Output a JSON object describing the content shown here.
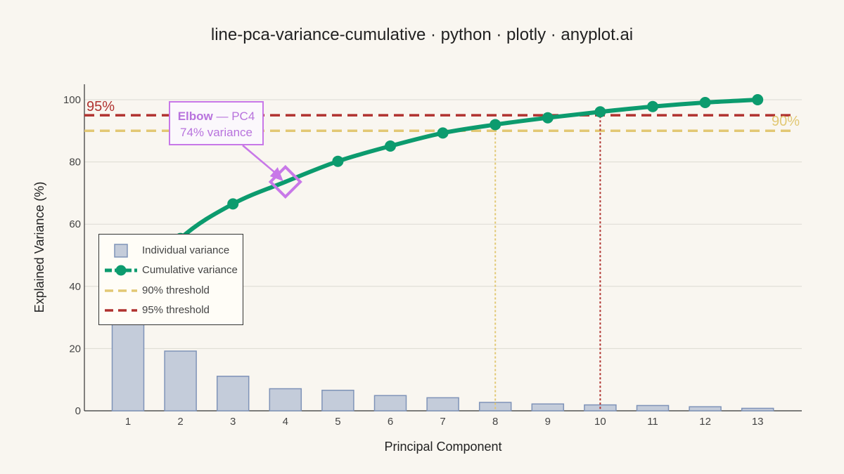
{
  "title": "line-pca-variance-cumulative · python · plotly · anyplot.ai",
  "colors": {
    "background": "#f9f6f0",
    "bar_fill": "#c4ccda",
    "bar_stroke": "#7f93b8",
    "cumulative_line": "#0c9b6e",
    "threshold_90": "#e2c874",
    "threshold_95": "#b0322f",
    "elbow": "#c878e8",
    "grid": "#dcdad3"
  },
  "legend": {
    "items": [
      {
        "label": "Individual variance",
        "icon": "bar-swatch-icon"
      },
      {
        "label": "Cumulative variance",
        "icon": "line-marker-icon"
      },
      {
        "label": "90% threshold",
        "icon": "dash-line-icon"
      },
      {
        "label": "95% threshold",
        "icon": "dash-line-icon"
      }
    ]
  },
  "elbow_callout": {
    "bold": "Elbow",
    "rest": " — PC4",
    "line2": "74% variance"
  },
  "chart_data": {
    "type": "bar",
    "title": "line-pca-variance-cumulative · python · plotly · anyplot.ai",
    "xlabel": "Principal Component",
    "ylabel": "Explained Variance (%)",
    "categories": [
      "1",
      "2",
      "3",
      "4",
      "5",
      "6",
      "7",
      "8",
      "9",
      "10",
      "11",
      "12",
      "13"
    ],
    "ylim": [
      0,
      105
    ],
    "yticks": [
      0,
      20,
      40,
      60,
      80,
      100
    ],
    "grid": true,
    "legend_position": "middle-left",
    "series": [
      {
        "name": "Individual variance",
        "kind": "bar",
        "values": [
          36.2,
          19.2,
          11.1,
          7.1,
          6.6,
          4.9,
          4.2,
          2.7,
          2.2,
          1.9,
          1.7,
          1.3,
          0.8
        ]
      },
      {
        "name": "Cumulative variance",
        "kind": "line",
        "values": [
          36.2,
          55.4,
          66.5,
          73.6,
          80.2,
          85.1,
          89.3,
          92.0,
          94.2,
          96.1,
          97.8,
          99.1,
          100.0
        ]
      }
    ],
    "thresholds": [
      {
        "name": "90% threshold",
        "value": 90,
        "label": "90%",
        "crosses_at": 8
      },
      {
        "name": "95% threshold",
        "value": 95,
        "label": "95%",
        "crosses_at": 10
      }
    ],
    "elbow": {
      "component": 4,
      "value": 73.6
    }
  }
}
